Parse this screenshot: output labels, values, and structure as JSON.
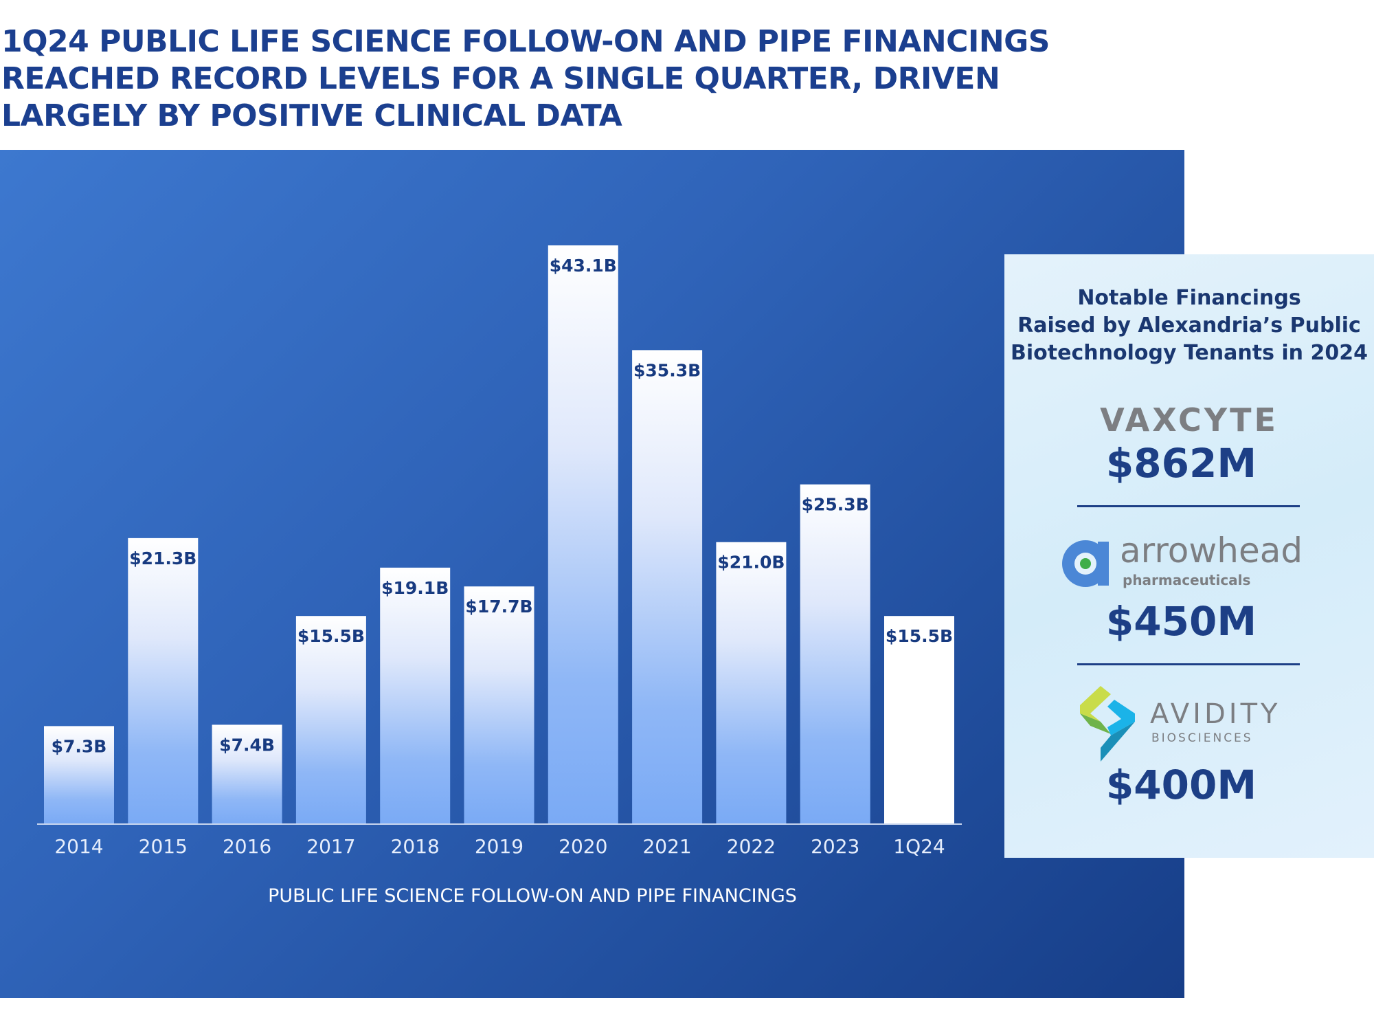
{
  "title": "1Q24 PUBLIC LIFE SCIENCE FOLLOW-ON AND PIPE FINANCINGS REACHED RECORD LEVELS FOR A SINGLE QUARTER, DRIVEN LARGELY BY POSITIVE CLINICAL DATA",
  "chart_data": {
    "type": "bar",
    "title": "",
    "xlabel": "PUBLIC LIFE SCIENCE FOLLOW-ON AND PIPE FINANCINGS",
    "ylabel": "",
    "categories": [
      "2014",
      "2015",
      "2016",
      "2017",
      "2018",
      "2019",
      "2020",
      "2021",
      "2022",
      "2023",
      "1Q24"
    ],
    "values": [
      7.3,
      21.3,
      7.4,
      15.5,
      19.1,
      17.7,
      43.1,
      35.3,
      21.0,
      25.3,
      15.5
    ],
    "labels": [
      "$7.3B",
      "$21.3B",
      "$7.4B",
      "$15.5B",
      "$19.1B",
      "$17.7B",
      "$43.1B",
      "$35.3B",
      "$21.0B",
      "$25.3B",
      "$15.5B"
    ],
    "unit": "$B",
    "ylim": [
      0,
      43.1
    ],
    "grid": false,
    "colors": {
      "bar_top": "#ffffff",
      "bar_bottom": "#7aaaf5",
      "highlight": "#ffffff",
      "label": "#173a80"
    }
  },
  "sidebar": {
    "title_lines": [
      "Notable Financings",
      "Raised by Alexandria’s Public",
      "Biotechnology Tenants in 2024"
    ],
    "items": [
      {
        "company": "VAXCYTE",
        "amount": "$862M"
      },
      {
        "company": "arrowhead",
        "subtitle": "pharmaceuticals",
        "amount": "$450M"
      },
      {
        "company": "AVIDITY",
        "subtitle": "BIOSCIENCES",
        "amount": "$400M"
      }
    ]
  }
}
